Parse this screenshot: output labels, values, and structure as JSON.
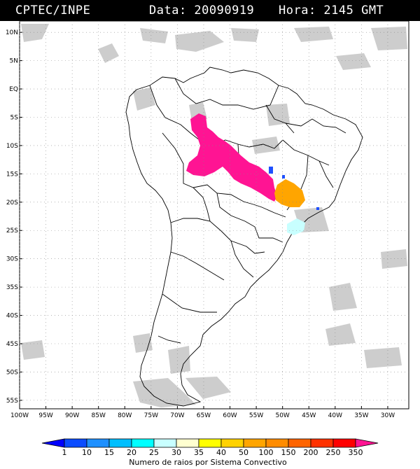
{
  "header": {
    "source": "CPTEC/INPE",
    "date_text": "Data: 20090919",
    "time_text": "Hora: 2145 GMT"
  },
  "map": {
    "lat_labels": [
      "10N",
      "5N",
      "EQ",
      "5S",
      "10S",
      "15S",
      "20S",
      "25S",
      "30S",
      "35S",
      "40S",
      "45S",
      "50S",
      "55S"
    ],
    "lon_labels": [
      "100W",
      "95W",
      "90W",
      "85W",
      "80W",
      "75W",
      "70W",
      "65W",
      "60W",
      "55W",
      "50W",
      "45W",
      "40W",
      "35W",
      "30W"
    ],
    "grid_style": "dotted"
  },
  "colorbar": {
    "tick_labels": [
      "1",
      "10",
      "15",
      "20",
      "25",
      "30",
      "35",
      "40",
      "50",
      "100",
      "150",
      "200",
      "250",
      "350"
    ],
    "colors": [
      "#0000ff",
      "#0a4cff",
      "#1e90ff",
      "#00bfff",
      "#00ffff",
      "#c8ffff",
      "#ffffd0",
      "#ffff00",
      "#ffd200",
      "#ffa500",
      "#ff8c00",
      "#ff6400",
      "#ff3200",
      "#ff0000",
      "#ff1493"
    ],
    "title": "Numero de raios por Sistema Convectivo"
  },
  "systems": [
    {
      "name": "west-central-brazil",
      "color": "#ff1493"
    },
    {
      "name": "minas-gerais",
      "color": "#ffa500"
    },
    {
      "name": "small-blue-cells",
      "color": "#1e50ff"
    },
    {
      "name": "parana-cyan",
      "color": "#c8ffff"
    }
  ]
}
